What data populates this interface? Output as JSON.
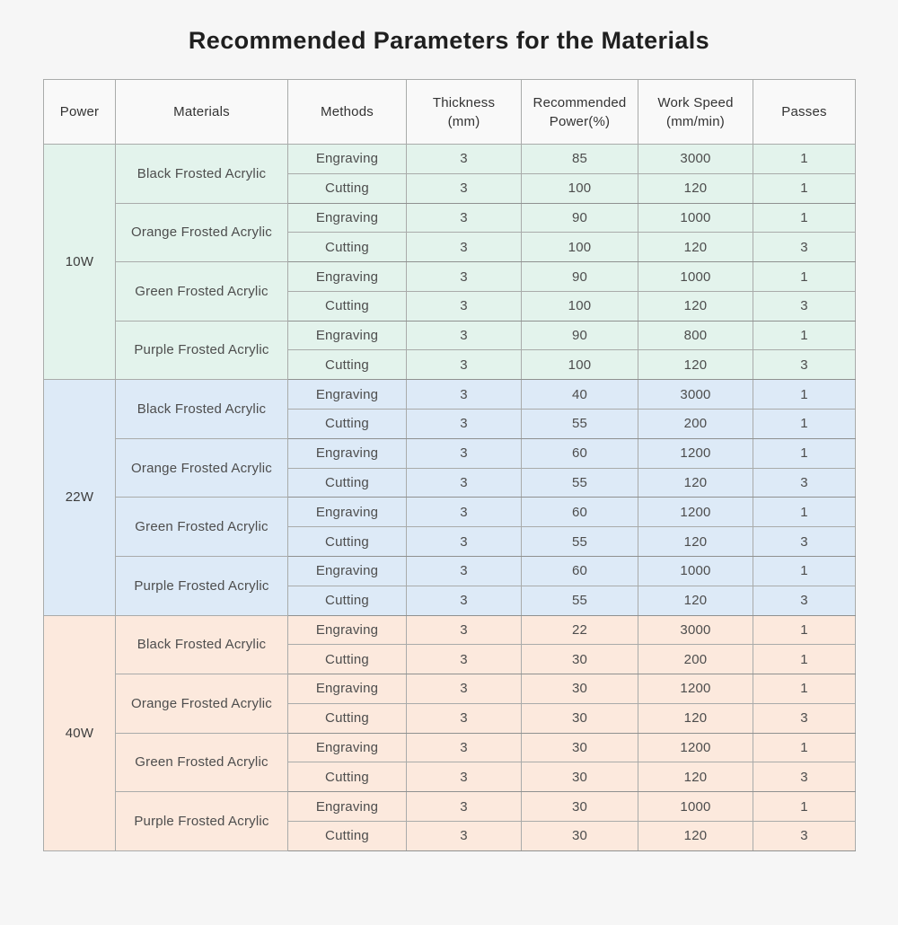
{
  "title": "Recommended Parameters for the Materials",
  "colors": {
    "page_bg": "#f6f6f6",
    "header_bg": "#f9f9f9",
    "border": "#a9abaa",
    "section_10w": "#e3f3ec",
    "section_22w": "#ddeaf7",
    "section_40w": "#fce9dd"
  },
  "table": {
    "headers": [
      "Power",
      "Materials",
      "Methods",
      "Thickness\n(mm)",
      "Recommended\nPower(%)",
      "Work Speed\n(mm/min)",
      "Passes"
    ],
    "sections": [
      {
        "power": "10W",
        "color": "#e3f3ec",
        "materials": [
          {
            "name": "Black Frosted Acrylic",
            "rows": [
              {
                "method": "Engraving",
                "thickness": "3",
                "recommended_power": "85",
                "work_speed": "3000",
                "passes": "1"
              },
              {
                "method": "Cutting",
                "thickness": "3",
                "recommended_power": "100",
                "work_speed": "120",
                "passes": "1"
              }
            ]
          },
          {
            "name": "Orange Frosted Acrylic",
            "rows": [
              {
                "method": "Engraving",
                "thickness": "3",
                "recommended_power": "90",
                "work_speed": "1000",
                "passes": "1"
              },
              {
                "method": "Cutting",
                "thickness": "3",
                "recommended_power": "100",
                "work_speed": "120",
                "passes": "3"
              }
            ]
          },
          {
            "name": "Green Frosted Acrylic",
            "rows": [
              {
                "method": "Engraving",
                "thickness": "3",
                "recommended_power": "90",
                "work_speed": "1000",
                "passes": "1"
              },
              {
                "method": "Cutting",
                "thickness": "3",
                "recommended_power": "100",
                "work_speed": "120",
                "passes": "3"
              }
            ]
          },
          {
            "name": "Purple Frosted Acrylic",
            "rows": [
              {
                "method": "Engraving",
                "thickness": "3",
                "recommended_power": "90",
                "work_speed": "800",
                "passes": "1"
              },
              {
                "method": "Cutting",
                "thickness": "3",
                "recommended_power": "100",
                "work_speed": "120",
                "passes": "3"
              }
            ]
          }
        ]
      },
      {
        "power": "22W",
        "color": "#ddeaf7",
        "materials": [
          {
            "name": "Black Frosted Acrylic",
            "rows": [
              {
                "method": "Engraving",
                "thickness": "3",
                "recommended_power": "40",
                "work_speed": "3000",
                "passes": "1"
              },
              {
                "method": "Cutting",
                "thickness": "3",
                "recommended_power": "55",
                "work_speed": "200",
                "passes": "1"
              }
            ]
          },
          {
            "name": "Orange Frosted Acrylic",
            "rows": [
              {
                "method": "Engraving",
                "thickness": "3",
                "recommended_power": "60",
                "work_speed": "1200",
                "passes": "1"
              },
              {
                "method": "Cutting",
                "thickness": "3",
                "recommended_power": "55",
                "work_speed": "120",
                "passes": "3"
              }
            ]
          },
          {
            "name": "Green Frosted Acrylic",
            "rows": [
              {
                "method": "Engraving",
                "thickness": "3",
                "recommended_power": "60",
                "work_speed": "1200",
                "passes": "1"
              },
              {
                "method": "Cutting",
                "thickness": "3",
                "recommended_power": "55",
                "work_speed": "120",
                "passes": "3"
              }
            ]
          },
          {
            "name": "Purple Frosted Acrylic",
            "rows": [
              {
                "method": "Engraving",
                "thickness": "3",
                "recommended_power": "60",
                "work_speed": "1000",
                "passes": "1"
              },
              {
                "method": "Cutting",
                "thickness": "3",
                "recommended_power": "55",
                "work_speed": "120",
                "passes": "3"
              }
            ]
          }
        ]
      },
      {
        "power": "40W",
        "color": "#fce9dd",
        "materials": [
          {
            "name": "Black Frosted Acrylic",
            "rows": [
              {
                "method": "Engraving",
                "thickness": "3",
                "recommended_power": "22",
                "work_speed": "3000",
                "passes": "1"
              },
              {
                "method": "Cutting",
                "thickness": "3",
                "recommended_power": "30",
                "work_speed": "200",
                "passes": "1"
              }
            ]
          },
          {
            "name": "Orange Frosted Acrylic",
            "rows": [
              {
                "method": "Engraving",
                "thickness": "3",
                "recommended_power": "30",
                "work_speed": "1200",
                "passes": "1"
              },
              {
                "method": "Cutting",
                "thickness": "3",
                "recommended_power": "30",
                "work_speed": "120",
                "passes": "3"
              }
            ]
          },
          {
            "name": "Green Frosted Acrylic",
            "rows": [
              {
                "method": "Engraving",
                "thickness": "3",
                "recommended_power": "30",
                "work_speed": "1200",
                "passes": "1"
              },
              {
                "method": "Cutting",
                "thickness": "3",
                "recommended_power": "30",
                "work_speed": "120",
                "passes": "3"
              }
            ]
          },
          {
            "name": "Purple Frosted Acrylic",
            "rows": [
              {
                "method": "Engraving",
                "thickness": "3",
                "recommended_power": "30",
                "work_speed": "1000",
                "passes": "1"
              },
              {
                "method": "Cutting",
                "thickness": "3",
                "recommended_power": "30",
                "work_speed": "120",
                "passes": "3"
              }
            ]
          }
        ]
      }
    ]
  }
}
